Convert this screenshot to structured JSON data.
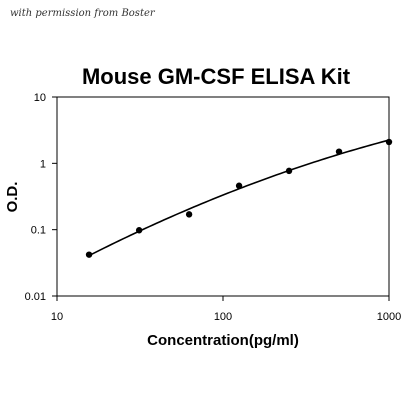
{
  "page": {
    "note": "with permission from Boster"
  },
  "chart_data": {
    "type": "scatter",
    "title": "Mouse GM-CSF ELISA Kit",
    "xlabel": "Concentration(pg/ml)",
    "ylabel": "O.D.",
    "xscale": "log",
    "yscale": "log",
    "xlim": [
      10,
      1000
    ],
    "ylim": [
      0.01,
      10
    ],
    "xticks": [
      "10",
      "100",
      "1000"
    ],
    "yticks": [
      "0.01",
      "0.1",
      "1",
      "10"
    ],
    "grid": false,
    "legend": "none",
    "series": [
      {
        "x": [
          15.6,
          31.25,
          62.5,
          125,
          250,
          500,
          1000
        ],
        "y": [
          0.042,
          0.098,
          0.17,
          0.46,
          0.77,
          1.5,
          2.1
        ]
      }
    ],
    "fit_curve": true,
    "colors": {
      "points": "#000000",
      "curve": "#000000",
      "axes": "#000000"
    }
  }
}
